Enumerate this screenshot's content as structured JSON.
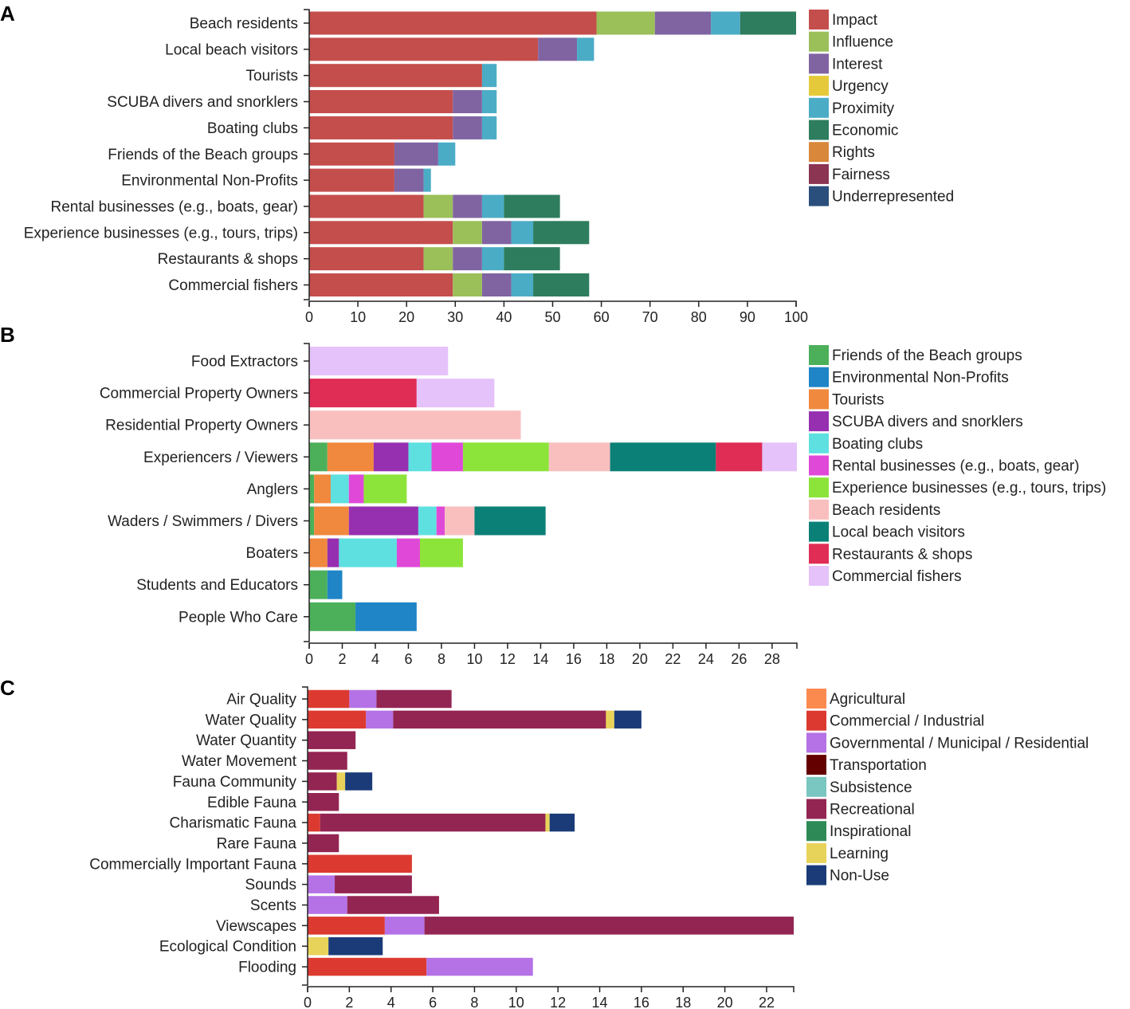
{
  "chart_data": [
    {
      "panel": "A",
      "type": "bar",
      "orientation": "horizontal",
      "stacked": true,
      "categories": [
        "Beach residents",
        "Local beach visitors",
        "Tourists",
        "SCUBA divers and snorklers",
        "Boating clubs",
        "Friends of the Beach groups",
        "Environmental Non-Profits",
        "Rental businesses (e.g., boats, gear)",
        "Experience businesses (e.g., tours, trips)",
        "Restaurants & shops",
        "Commercial fishers"
      ],
      "series": [
        {
          "name": "Impact",
          "color": "#c44e4c",
          "values": [
            59,
            47,
            35.5,
            29.5,
            29.5,
            17.5,
            17.5,
            23.5,
            29.5,
            23.5,
            29.5
          ]
        },
        {
          "name": "Influence",
          "color": "#9bbf59",
          "values": [
            12,
            0,
            0,
            0,
            0,
            0,
            0,
            6,
            6,
            6,
            6
          ]
        },
        {
          "name": "Interest",
          "color": "#8064a2",
          "values": [
            11.5,
            8,
            0,
            6,
            6,
            9,
            6,
            6,
            6,
            6,
            6
          ]
        },
        {
          "name": "Urgency",
          "color": "#e5c93b",
          "values": [
            0,
            0,
            0,
            0,
            0,
            0,
            0,
            0,
            0,
            0,
            0
          ]
        },
        {
          "name": "Proximity",
          "color": "#4bacc6",
          "values": [
            6,
            3.5,
            3,
            3,
            3,
            3.5,
            1.5,
            4.5,
            4.5,
            4.5,
            4.5
          ]
        },
        {
          "name": "Economic",
          "color": "#2e7d5e",
          "values": [
            11.5,
            0,
            0,
            0,
            0,
            0,
            0,
            11.5,
            11.5,
            11.5,
            11.5
          ]
        },
        {
          "name": "Rights",
          "color": "#d9873a",
          "values": [
            0,
            0,
            0,
            0,
            0,
            0,
            0,
            0,
            0,
            0,
            0
          ]
        },
        {
          "name": "Fairness",
          "color": "#8b3553",
          "values": [
            0,
            0,
            0,
            0,
            0,
            0,
            0,
            0,
            0,
            0,
            0
          ]
        },
        {
          "name": "Underrepresented",
          "color": "#2a4f7c",
          "values": [
            0,
            0,
            0,
            0,
            0,
            0,
            0,
            0,
            0,
            0,
            0
          ]
        }
      ],
      "xlim": [
        0,
        100
      ],
      "xticks": [
        0,
        10,
        20,
        30,
        40,
        50,
        60,
        70,
        80,
        90,
        100
      ],
      "legend_position": "right"
    },
    {
      "panel": "B",
      "type": "bar",
      "orientation": "horizontal",
      "stacked": true,
      "categories": [
        "Food Extractors",
        "Commercial Property Owners",
        "Residential Property Owners",
        "Experiencers / Viewers",
        "Anglers",
        "Waders / Swimmers / Divers",
        "Boaters",
        "Students and Educators",
        "People Who Care"
      ],
      "series": [
        {
          "name": "Friends of the Beach groups",
          "color": "#4cb05a",
          "values": [
            0,
            0,
            0,
            1.1,
            0.3,
            0.3,
            0,
            1.1,
            2.8
          ]
        },
        {
          "name": "Environmental Non-Profits",
          "color": "#1f85c6",
          "values": [
            0,
            0,
            0,
            0,
            0,
            0,
            0,
            0.9,
            3.7
          ]
        },
        {
          "name": "Tourists",
          "color": "#f0883e",
          "values": [
            0,
            0,
            0,
            2.8,
            1,
            2.1,
            1.1,
            0,
            0
          ]
        },
        {
          "name": "SCUBA divers and snorklers",
          "color": "#9630b0",
          "values": [
            0,
            0,
            0,
            2.1,
            0,
            4.2,
            0.7,
            0,
            0
          ]
        },
        {
          "name": "Boating clubs",
          "color": "#5ee0e0",
          "values": [
            0,
            0,
            0,
            1.4,
            1.1,
            1.1,
            3.5,
            0,
            0
          ]
        },
        {
          "name": "Rental businesses (e.g., boats, gear)",
          "color": "#e049d8",
          "values": [
            0,
            0,
            0,
            1.9,
            0.9,
            0.5,
            1.4,
            0,
            0
          ]
        },
        {
          "name": "Experience businesses (e.g., tours, trips)",
          "color": "#8ce43a",
          "values": [
            0,
            0,
            0,
            5.2,
            2.6,
            0,
            2.6,
            0,
            0
          ]
        },
        {
          "name": "Beach residents",
          "color": "#f9bfbf",
          "values": [
            0,
            0,
            12.8,
            3.7,
            0,
            1.8,
            0,
            0,
            0
          ]
        },
        {
          "name": "Local beach visitors",
          "color": "#0b8077",
          "values": [
            0,
            0,
            0,
            6.4,
            0,
            4.3,
            0,
            0,
            0
          ]
        },
        {
          "name": "Restaurants & shops",
          "color": "#e02d55",
          "values": [
            0,
            6.5,
            0,
            2.8,
            0,
            0,
            0,
            0,
            0
          ]
        },
        {
          "name": "Commercial fishers",
          "color": "#e5c2fa",
          "values": [
            8.4,
            4.7,
            0,
            2.1,
            0,
            0,
            0,
            0,
            0
          ]
        }
      ],
      "xlim": [
        0,
        29.5
      ],
      "xticks": [
        0,
        2,
        4,
        6,
        8,
        10,
        12,
        14,
        16,
        18,
        20,
        22,
        24,
        26,
        28
      ],
      "legend_position": "right"
    },
    {
      "panel": "C",
      "type": "bar",
      "orientation": "horizontal",
      "stacked": true,
      "categories": [
        "Air Quality",
        "Water Quality",
        "Water Quantity",
        "Water Movement",
        "Fauna Community",
        "Edible Fauna",
        "Charismatic Fauna",
        "Rare Fauna",
        "Commercially Important Fauna",
        "Sounds",
        "Scents",
        "Viewscapes",
        "Ecological Condition",
        "Flooding"
      ],
      "series": [
        {
          "name": "Agricultural",
          "color": "#fb8a4f",
          "values": [
            0,
            0,
            0,
            0,
            0,
            0,
            0,
            0,
            0,
            0,
            0,
            0,
            0,
            0
          ]
        },
        {
          "name": "Commercial / Industrial",
          "color": "#dc3a30",
          "values": [
            2,
            2.8,
            0,
            0,
            0,
            0,
            0.6,
            0,
            5,
            0,
            0,
            3.7,
            0,
            5.7
          ]
        },
        {
          "name": "Governmental / Municipal / Residential",
          "color": "#b472e6",
          "values": [
            1.3,
            1.3,
            0,
            0,
            0,
            0,
            0,
            0,
            0,
            1.3,
            1.9,
            1.9,
            0,
            5.1
          ]
        },
        {
          "name": "Transportation",
          "color": "#650000",
          "values": [
            0,
            0,
            0,
            0,
            0,
            0,
            0,
            0,
            0,
            0,
            0,
            0,
            0,
            0
          ]
        },
        {
          "name": "Subsistence",
          "color": "#7ac6c0",
          "values": [
            0,
            0,
            0,
            0,
            0,
            0,
            0,
            0,
            0,
            0,
            0,
            0,
            0,
            0
          ]
        },
        {
          "name": "Recreational",
          "color": "#932552",
          "values": [
            3.6,
            10.2,
            2.3,
            1.9,
            1.4,
            1.5,
            10.8,
            1.5,
            0,
            3.7,
            4.4,
            17.7,
            0,
            0
          ]
        },
        {
          "name": "Inspirational",
          "color": "#2e8b57",
          "values": [
            0,
            0,
            0,
            0,
            0,
            0,
            0,
            0,
            0,
            0,
            0,
            0,
            0,
            0
          ]
        },
        {
          "name": "Learning",
          "color": "#e8d35a",
          "values": [
            0,
            0.4,
            0,
            0,
            0.4,
            0,
            0.2,
            0,
            0,
            0,
            0,
            0,
            1,
            0
          ]
        },
        {
          "name": "Non-Use",
          "color": "#1b3b78",
          "values": [
            0,
            1.3,
            0,
            0,
            1.3,
            0,
            1.2,
            0,
            0,
            0,
            0,
            0,
            2.6,
            0
          ]
        }
      ],
      "xlim": [
        0,
        23.3
      ],
      "xticks": [
        0,
        2,
        4,
        6,
        8,
        10,
        12,
        14,
        16,
        18,
        20,
        22
      ],
      "legend_position": "right"
    }
  ]
}
